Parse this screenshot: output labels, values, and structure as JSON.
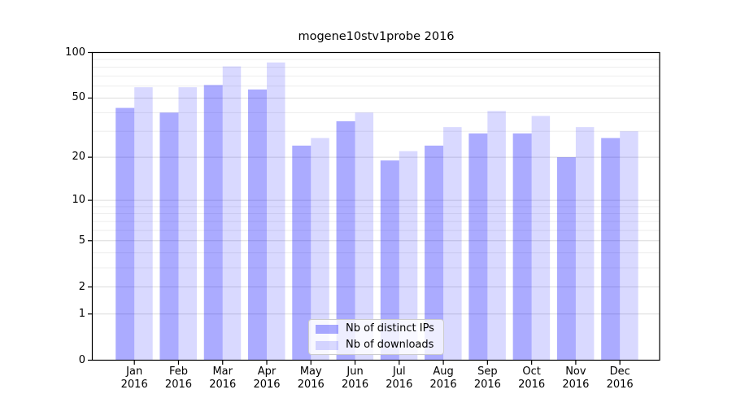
{
  "figure": {
    "background": "#ffffff"
  },
  "chart_data": {
    "type": "bar",
    "title": "mogene10stv1probe 2016",
    "categories": [
      "Jan",
      "Feb",
      "Mar",
      "Apr",
      "May",
      "Jun",
      "Jul",
      "Aug",
      "Sep",
      "Oct",
      "Nov",
      "Dec"
    ],
    "year": "2016",
    "series": [
      {
        "name": "Nb of distinct IPs",
        "fill": "rgba(0,0,255,0.33)",
        "hex_on_white": "#ababfa",
        "values": [
          43,
          40,
          61,
          57,
          24,
          35,
          19,
          24,
          29,
          29,
          20,
          27
        ]
      },
      {
        "name": "Nb of downloads",
        "fill": "rgba(0,0,255,0.15)",
        "hex_on_white": "#d9d9fa",
        "values": [
          59,
          59,
          81,
          86,
          27,
          40,
          22,
          32,
          41,
          38,
          32,
          30
        ]
      }
    ],
    "xlabel": "",
    "ylabel": "",
    "y_scale": "log1p",
    "ylim": [
      0,
      100
    ],
    "y_tick_values": [
      0,
      1,
      2,
      5,
      10,
      20,
      50,
      100
    ],
    "y_tick_labels": [
      "0",
      "1",
      "2",
      "5",
      "10",
      "20",
      "50",
      "100"
    ],
    "y_minor_tick_values": [
      3,
      4,
      6,
      7,
      8,
      9,
      30,
      40,
      60,
      70,
      80,
      90
    ],
    "grid": true,
    "legend_position": "inside-bottom-center",
    "colors": {
      "grid_major": "#dcdcdc",
      "grid_minor": "#ededed",
      "spine": "#000000",
      "text": "#000000"
    }
  }
}
